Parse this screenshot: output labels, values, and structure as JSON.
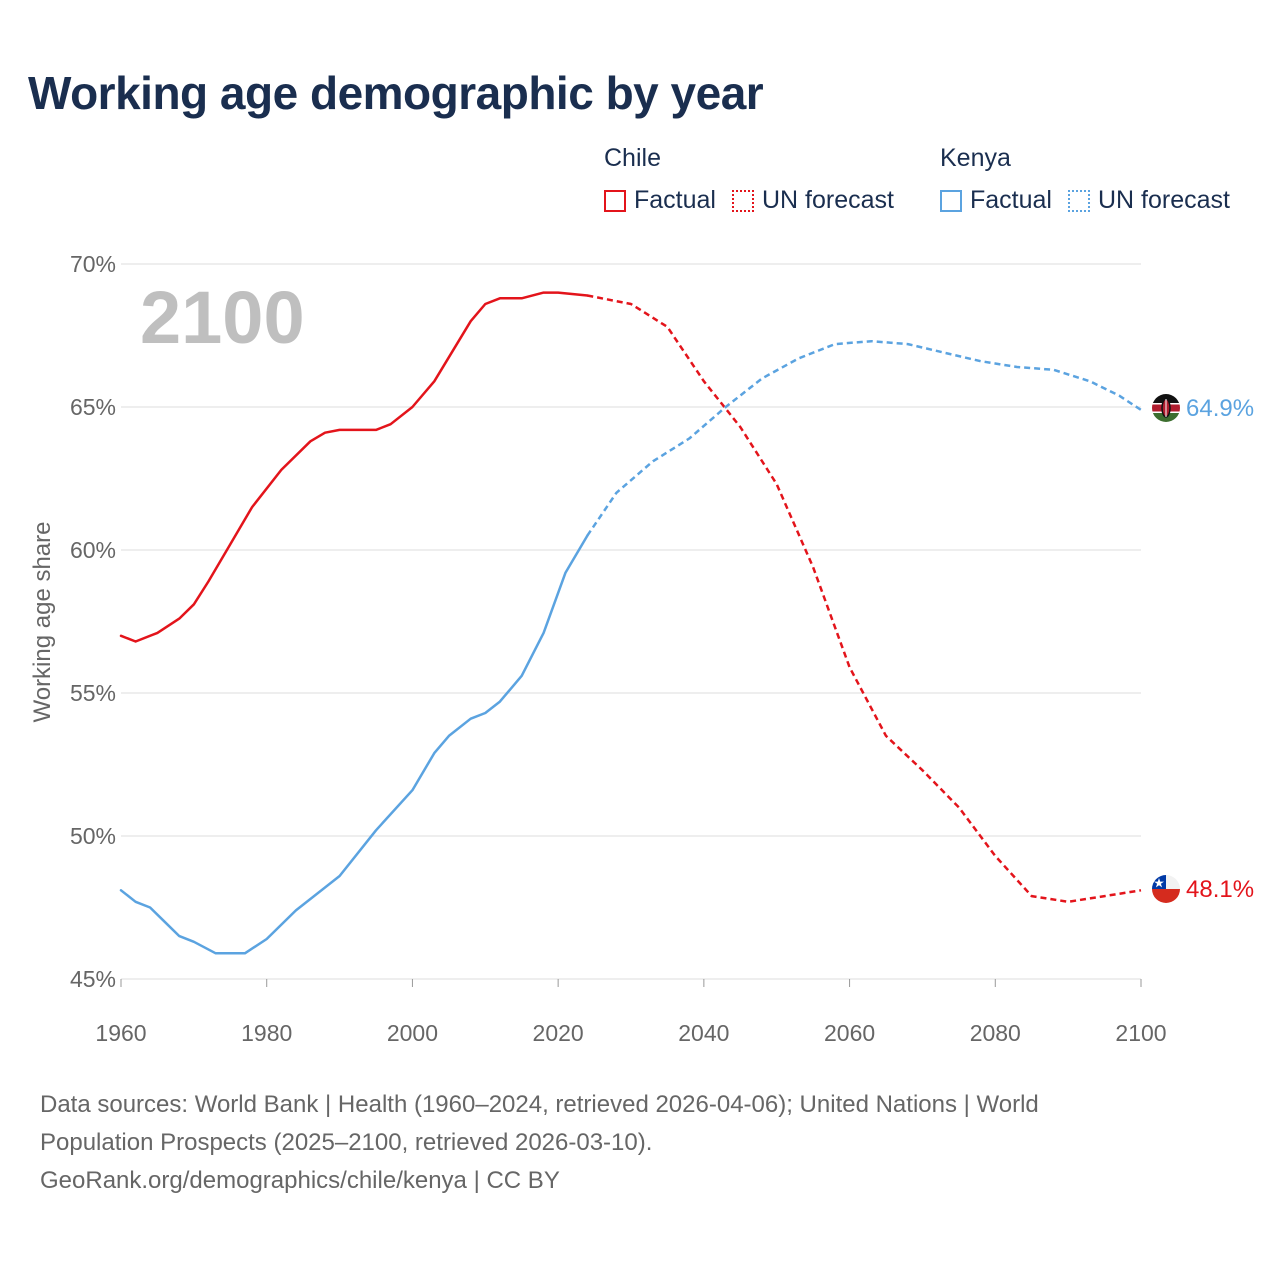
{
  "title": "Working age demographic by year",
  "legend": {
    "groups": [
      {
        "name": "Chile",
        "color": "#e3141b",
        "factual_label": "Factual",
        "forecast_label": "UN forecast"
      },
      {
        "name": "Kenya",
        "color": "#5ba3e0",
        "factual_label": "Factual",
        "forecast_label": "UN forecast"
      }
    ]
  },
  "year_watermark": "2100",
  "end_labels": {
    "chile": "48.1%",
    "kenya": "64.9%"
  },
  "source": {
    "line1": "Data sources: World Bank | Health (1960–2024, retrieved 2026-04-06); United Nations | World",
    "line2": "Population Prospects (2025–2100, retrieved 2026-03-10).",
    "line3": "GeoRank.org/demographics/chile/kenya | CC BY"
  },
  "chart_data": {
    "type": "line",
    "title": "Working age demographic by year",
    "xlabel": "",
    "ylabel": "Working age share",
    "xlim": [
      1960,
      2100
    ],
    "ylim": [
      45,
      70
    ],
    "x_ticks": [
      "1960",
      "1980",
      "2000",
      "2020",
      "2040",
      "2060",
      "2080",
      "2100"
    ],
    "y_ticks": [
      "45%",
      "50%",
      "55%",
      "60%",
      "65%",
      "70%"
    ],
    "factual_range": [
      1960,
      2024
    ],
    "forecast_range": [
      2025,
      2100
    ],
    "series": [
      {
        "name": "Chile",
        "color": "#e3141b",
        "points": [
          [
            1960,
            57.0
          ],
          [
            1962,
            56.8
          ],
          [
            1965,
            57.1
          ],
          [
            1968,
            57.6
          ],
          [
            1970,
            58.1
          ],
          [
            1972,
            58.9
          ],
          [
            1975,
            60.2
          ],
          [
            1978,
            61.5
          ],
          [
            1982,
            62.8
          ],
          [
            1986,
            63.8
          ],
          [
            1988,
            64.1
          ],
          [
            1990,
            64.2
          ],
          [
            1993,
            64.2
          ],
          [
            1995,
            64.2
          ],
          [
            1997,
            64.4
          ],
          [
            2000,
            65.0
          ],
          [
            2003,
            65.9
          ],
          [
            2008,
            68.0
          ],
          [
            2010,
            68.6
          ],
          [
            2012,
            68.8
          ],
          [
            2015,
            68.8
          ],
          [
            2018,
            69.0
          ],
          [
            2020,
            69.0
          ],
          [
            2024,
            68.9
          ],
          [
            2030,
            68.6
          ],
          [
            2035,
            67.8
          ],
          [
            2040,
            65.9
          ],
          [
            2045,
            64.3
          ],
          [
            2050,
            62.3
          ],
          [
            2055,
            59.4
          ],
          [
            2060,
            55.9
          ],
          [
            2065,
            53.5
          ],
          [
            2070,
            52.3
          ],
          [
            2075,
            51.0
          ],
          [
            2080,
            49.3
          ],
          [
            2085,
            47.9
          ],
          [
            2090,
            47.7
          ],
          [
            2095,
            47.9
          ],
          [
            2100,
            48.1
          ]
        ]
      },
      {
        "name": "Kenya",
        "color": "#5ba3e0",
        "points": [
          [
            1960,
            48.1
          ],
          [
            1962,
            47.7
          ],
          [
            1964,
            47.5
          ],
          [
            1966,
            47.0
          ],
          [
            1968,
            46.5
          ],
          [
            1970,
            46.3
          ],
          [
            1973,
            45.9
          ],
          [
            1977,
            45.9
          ],
          [
            1980,
            46.4
          ],
          [
            1984,
            47.4
          ],
          [
            1990,
            48.6
          ],
          [
            1995,
            50.2
          ],
          [
            2000,
            51.6
          ],
          [
            2003,
            52.9
          ],
          [
            2005,
            53.5
          ],
          [
            2008,
            54.1
          ],
          [
            2010,
            54.3
          ],
          [
            2012,
            54.7
          ],
          [
            2015,
            55.6
          ],
          [
            2018,
            57.1
          ],
          [
            2021,
            59.2
          ],
          [
            2024,
            60.5
          ],
          [
            2028,
            62.0
          ],
          [
            2033,
            63.1
          ],
          [
            2038,
            63.9
          ],
          [
            2043,
            65.0
          ],
          [
            2048,
            66.0
          ],
          [
            2053,
            66.7
          ],
          [
            2058,
            67.2
          ],
          [
            2063,
            67.3
          ],
          [
            2068,
            67.2
          ],
          [
            2073,
            66.9
          ],
          [
            2078,
            66.6
          ],
          [
            2083,
            66.4
          ],
          [
            2088,
            66.3
          ],
          [
            2093,
            65.9
          ],
          [
            2097,
            65.4
          ],
          [
            2100,
            64.9
          ]
        ]
      }
    ]
  }
}
